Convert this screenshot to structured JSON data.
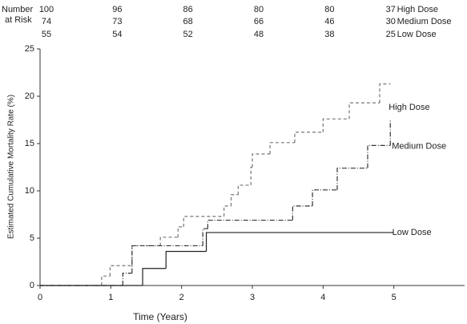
{
  "chart_data": {
    "type": "step",
    "xlabel": "Time (Years)",
    "ylabel": "Estimated Cumulative Mortality Rate (%)",
    "xlim": [
      0,
      6
    ],
    "xticks": [
      0,
      1,
      2,
      3,
      4,
      5
    ],
    "ylim": [
      0,
      25
    ],
    "yticks": [
      0,
      5,
      10,
      15,
      20,
      25
    ],
    "series": [
      {
        "name": "High Dose",
        "color": "#777777",
        "line_style": "dashed",
        "x": [
          0,
          0.87,
          0.99,
          1.3,
          1.7,
          1.95,
          2.03,
          2.6,
          2.7,
          2.8,
          2.98,
          3.0,
          3.25,
          3.6,
          4.0,
          4.37,
          4.8,
          4.95
        ],
        "values": [
          0,
          1.0,
          2.1,
          4.2,
          5.1,
          6.2,
          7.3,
          8.4,
          9.6,
          10.6,
          12.5,
          13.9,
          15.1,
          16.2,
          17.6,
          19.3,
          21.3,
          21.3
        ]
      },
      {
        "name": "Medium Dose",
        "color": "#333333",
        "line_style": "dashdot",
        "x": [
          0,
          1.17,
          1.3,
          2.3,
          2.37,
          3.57,
          3.85,
          4.2,
          4.63,
          4.95
        ],
        "values": [
          0,
          1.3,
          4.2,
          6.0,
          6.9,
          8.4,
          10.1,
          12.4,
          14.8,
          17.5
        ]
      },
      {
        "name": "Low Dose",
        "color": "#222222",
        "line_style": "solid",
        "x": [
          0,
          1.45,
          1.78,
          2.35,
          5.0
        ],
        "values": [
          0,
          1.8,
          3.6,
          5.6,
          5.6
        ]
      }
    ],
    "at_risk": {
      "label": [
        "Number",
        "at Risk"
      ],
      "times": [
        0,
        1,
        2,
        3,
        4,
        5
      ],
      "rows": [
        [
          100,
          96,
          86,
          80,
          80,
          37
        ],
        [
          74,
          73,
          68,
          66,
          46,
          30
        ],
        [
          55,
          54,
          52,
          48,
          38,
          25
        ]
      ]
    }
  }
}
